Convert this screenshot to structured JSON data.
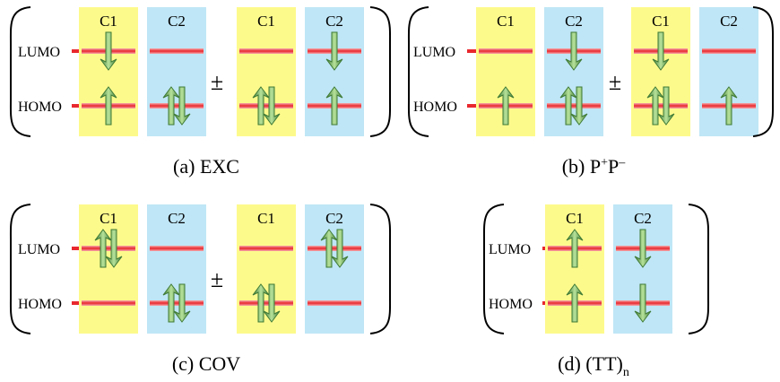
{
  "colors": {
    "c1_column": "#fdfa8c",
    "c2_column": "#bfe6f6",
    "orbital_line": "#e8282e",
    "orbital_glow": "#f6a9ad",
    "arrow_dark": "#3f7a36",
    "arrow_light": "#9bd27a",
    "bracket": "#000000"
  },
  "icons": {
    "spin_up": "spin-up-arrow-icon",
    "spin_down": "spin-down-arrow-icon",
    "orbital": "orbital-level-line"
  },
  "labels": {
    "lumo": "LUMO",
    "homo": "HOMO",
    "pm": "±"
  },
  "panels": [
    {
      "id": "exc",
      "caption_main": "(a) EXC",
      "caption_sup": "",
      "caption_sub": "",
      "has_pm": true,
      "configs": [
        {
          "columns": [
            {
              "label": "C1",
              "lumo": "down",
              "homo": "up"
            },
            {
              "label": "C2",
              "lumo": "",
              "homo": "pair"
            }
          ]
        },
        {
          "columns": [
            {
              "label": "C1",
              "lumo": "",
              "homo": "pair"
            },
            {
              "label": "C2",
              "lumo": "down",
              "homo": "up"
            }
          ]
        }
      ]
    },
    {
      "id": "pp",
      "caption_main": "(b) P",
      "caption_sup": "+",
      "caption_tail": "P",
      "caption_sup2": "–",
      "caption_sub": "",
      "has_pm": true,
      "configs": [
        {
          "columns": [
            {
              "label": "C1",
              "lumo": "",
              "homo": "up"
            },
            {
              "label": "C2",
              "lumo": "down",
              "homo": "pair"
            }
          ]
        },
        {
          "columns": [
            {
              "label": "C1",
              "lumo": "down",
              "homo": "pair"
            },
            {
              "label": "C2",
              "lumo": "",
              "homo": "up"
            }
          ]
        }
      ]
    },
    {
      "id": "cov",
      "caption_main": "(c) COV",
      "caption_sup": "",
      "caption_sub": "",
      "has_pm": true,
      "configs": [
        {
          "columns": [
            {
              "label": "C1",
              "lumo": "pair",
              "homo": ""
            },
            {
              "label": "C2",
              "lumo": "",
              "homo": "pair"
            }
          ]
        },
        {
          "columns": [
            {
              "label": "C1",
              "lumo": "",
              "homo": "pair"
            },
            {
              "label": "C2",
              "lumo": "pair",
              "homo": ""
            }
          ]
        }
      ]
    },
    {
      "id": "tt",
      "caption_main": "(d) (TT)",
      "caption_sup": "",
      "caption_sub": "n",
      "has_pm": false,
      "configs": [
        {
          "columns": [
            {
              "label": "C1",
              "lumo": "up",
              "homo": "up"
            },
            {
              "label": "C2",
              "lumo": "down",
              "homo": "down"
            }
          ]
        }
      ]
    }
  ]
}
